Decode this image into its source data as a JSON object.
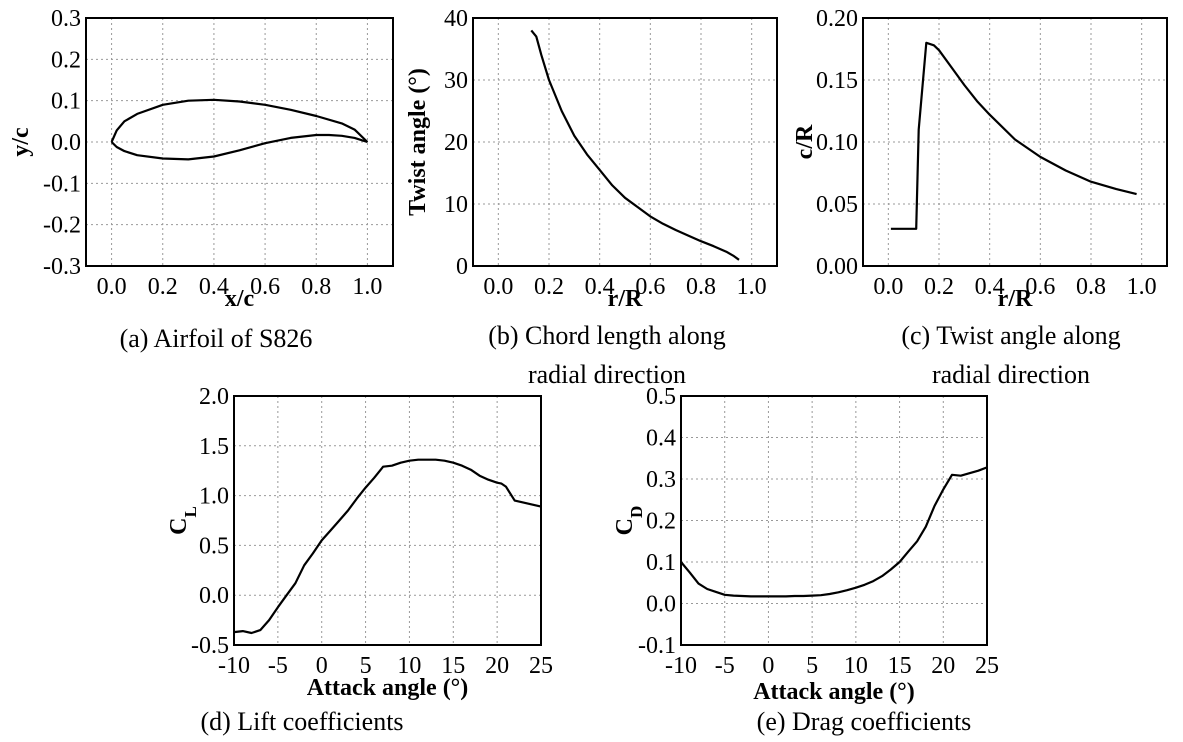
{
  "chart_data": [
    {
      "type": "line",
      "xlabel": "x/c",
      "ylabel": "y/c",
      "caption": "(a) Airfoil of S826",
      "xlim": [
        -0.1,
        1.1
      ],
      "ylim": [
        -0.3,
        0.3
      ],
      "xticks": [
        0.0,
        0.2,
        0.4,
        0.6,
        0.8,
        1.0
      ],
      "xtick_labels": [
        "0.0",
        "0.2",
        "0.4",
        "0.6",
        "0.8",
        "1.0"
      ],
      "yticks": [
        -0.3,
        -0.2,
        -0.1,
        0.0,
        0.1,
        0.2,
        0.3
      ],
      "ytick_labels": [
        "-0.3",
        "-0.2",
        "-0.1",
        "0.0",
        "0.1",
        "0.2",
        "0.3"
      ],
      "grid": true,
      "series": [
        {
          "x": [
            1.0,
            0.95,
            0.9,
            0.8,
            0.7,
            0.6,
            0.5,
            0.4,
            0.3,
            0.2,
            0.1,
            0.05,
            0.02,
            0.0
          ],
          "y": [
            0.0,
            0.03,
            0.045,
            0.063,
            0.078,
            0.09,
            0.098,
            0.102,
            0.1,
            0.09,
            0.068,
            0.05,
            0.028,
            0.0
          ]
        },
        {
          "x": [
            0.0,
            0.02,
            0.05,
            0.1,
            0.2,
            0.3,
            0.4,
            0.5,
            0.6,
            0.7,
            0.8,
            0.85,
            0.9,
            0.95,
            1.0
          ],
          "y": [
            0.0,
            -0.012,
            -0.022,
            -0.032,
            -0.04,
            -0.042,
            -0.035,
            -0.02,
            -0.003,
            0.01,
            0.017,
            0.017,
            0.015,
            0.01,
            0.0
          ]
        }
      ]
    },
    {
      "type": "line",
      "xlabel": "r/R",
      "ylabel": "Twist angle (°)",
      "caption_lines": [
        "(b) Chord length along",
        "radial direction"
      ],
      "xlim": [
        -0.1,
        1.1
      ],
      "ylim": [
        0,
        40
      ],
      "xticks": [
        0.0,
        0.2,
        0.4,
        0.6,
        0.8,
        1.0
      ],
      "xtick_labels": [
        "0.0",
        "0.2",
        "0.4",
        "0.6",
        "0.8",
        "1.0"
      ],
      "yticks": [
        0,
        10,
        20,
        30,
        40
      ],
      "ytick_labels": [
        "0",
        "10",
        "20",
        "30",
        "40"
      ],
      "grid": true,
      "series": [
        {
          "x": [
            0.13,
            0.15,
            0.17,
            0.2,
            0.25,
            0.3,
            0.35,
            0.4,
            0.45,
            0.5,
            0.55,
            0.6,
            0.65,
            0.7,
            0.75,
            0.8,
            0.85,
            0.9,
            0.93,
            0.95
          ],
          "y": [
            38,
            37,
            34,
            30,
            25,
            21,
            18,
            15.5,
            13,
            11,
            9.5,
            8,
            6.8,
            5.8,
            4.9,
            4,
            3.2,
            2.3,
            1.6,
            1
          ]
        }
      ]
    },
    {
      "type": "line",
      "xlabel": "r/R",
      "ylabel": "c/R",
      "caption_lines": [
        "(c) Twist angle along",
        "radial direction"
      ],
      "xlim": [
        -0.1,
        1.1
      ],
      "ylim": [
        0,
        0.2
      ],
      "xticks": [
        0.0,
        0.2,
        0.4,
        0.6,
        0.8,
        1.0
      ],
      "xtick_labels": [
        "0.0",
        "0.2",
        "0.4",
        "0.6",
        "0.8",
        "1.0"
      ],
      "yticks": [
        0,
        0.05,
        0.1,
        0.15,
        0.2
      ],
      "ytick_labels": [
        "0.00",
        "0.05",
        "0.10",
        "0.15",
        "0.20"
      ],
      "grid": true,
      "series": [
        {
          "x": [
            0.01,
            0.11,
            0.12,
            0.15,
            0.18,
            0.2,
            0.25,
            0.3,
            0.35,
            0.4,
            0.5,
            0.6,
            0.7,
            0.8,
            0.9,
            0.98
          ],
          "y": [
            0.03,
            0.03,
            0.11,
            0.18,
            0.178,
            0.174,
            0.16,
            0.146,
            0.133,
            0.122,
            0.102,
            0.088,
            0.077,
            0.068,
            0.062,
            0.058
          ]
        }
      ]
    },
    {
      "type": "line",
      "xlabel": "Attack angle (°)",
      "ylabel_main": "C",
      "ylabel_sub": "L",
      "caption": "(d) Lift coefficients",
      "xlim": [
        -10,
        25
      ],
      "ylim": [
        -0.5,
        2.0
      ],
      "xticks": [
        -10,
        -5,
        0,
        5,
        10,
        15,
        20,
        25
      ],
      "xtick_labels": [
        "-10",
        "-5",
        "0",
        "5",
        "10",
        "15",
        "20",
        "25"
      ],
      "yticks": [
        -0.5,
        0,
        0.5,
        1.0,
        1.5,
        2.0
      ],
      "ytick_labels": [
        "-0.5",
        "0.0",
        "0.5",
        "1.0",
        "1.5",
        "2.0"
      ],
      "grid": true,
      "series": [
        {
          "x": [
            -10,
            -9,
            -8,
            -7,
            -6,
            -5,
            -4,
            -3,
            -2,
            -1,
            0,
            1,
            2,
            3,
            4,
            5,
            6,
            7,
            8,
            9,
            10,
            11,
            12,
            13,
            14,
            15,
            16,
            17,
            18,
            19,
            20,
            20.5,
            21,
            22,
            23,
            24,
            25
          ],
          "y": [
            -0.37,
            -0.36,
            -0.38,
            -0.35,
            -0.25,
            -0.12,
            0.0,
            0.12,
            0.3,
            0.42,
            0.55,
            0.65,
            0.75,
            0.85,
            0.97,
            1.08,
            1.18,
            1.29,
            1.3,
            1.33,
            1.35,
            1.36,
            1.36,
            1.36,
            1.35,
            1.33,
            1.3,
            1.26,
            1.2,
            1.16,
            1.13,
            1.12,
            1.09,
            0.95,
            0.93,
            0.91,
            0.89
          ]
        }
      ]
    },
    {
      "type": "line",
      "xlabel": "Attack angle (°)",
      "ylabel_main": "C",
      "ylabel_sub": "D",
      "caption": "(e) Drag coefficients",
      "xlim": [
        -10,
        25
      ],
      "ylim": [
        -0.1,
        0.5
      ],
      "xticks": [
        -10,
        -5,
        0,
        5,
        10,
        15,
        20,
        25
      ],
      "xtick_labels": [
        "-10",
        "-5",
        "0",
        "5",
        "10",
        "15",
        "20",
        "25"
      ],
      "yticks": [
        -0.1,
        0,
        0.1,
        0.2,
        0.3,
        0.4,
        0.5
      ],
      "ytick_labels": [
        "-0.1",
        "0.0",
        "0.1",
        "0.2",
        "0.3",
        "0.4",
        "0.5"
      ],
      "grid": true,
      "series": [
        {
          "x": [
            -10,
            -9,
            -8,
            -7,
            -6,
            -5,
            -4,
            -3,
            -2,
            -1,
            0,
            1,
            2,
            3,
            4,
            5,
            6,
            7,
            8,
            9,
            10,
            11,
            12,
            13,
            14,
            15,
            16,
            17,
            18,
            19,
            20,
            21,
            22,
            23,
            24,
            25
          ],
          "y": [
            0.1,
            0.075,
            0.048,
            0.035,
            0.028,
            0.021,
            0.019,
            0.018,
            0.017,
            0.017,
            0.017,
            0.017,
            0.017,
            0.018,
            0.018,
            0.019,
            0.02,
            0.023,
            0.027,
            0.032,
            0.038,
            0.045,
            0.054,
            0.066,
            0.082,
            0.1,
            0.125,
            0.15,
            0.185,
            0.235,
            0.275,
            0.31,
            0.308,
            0.314,
            0.32,
            0.328
          ]
        }
      ]
    }
  ]
}
